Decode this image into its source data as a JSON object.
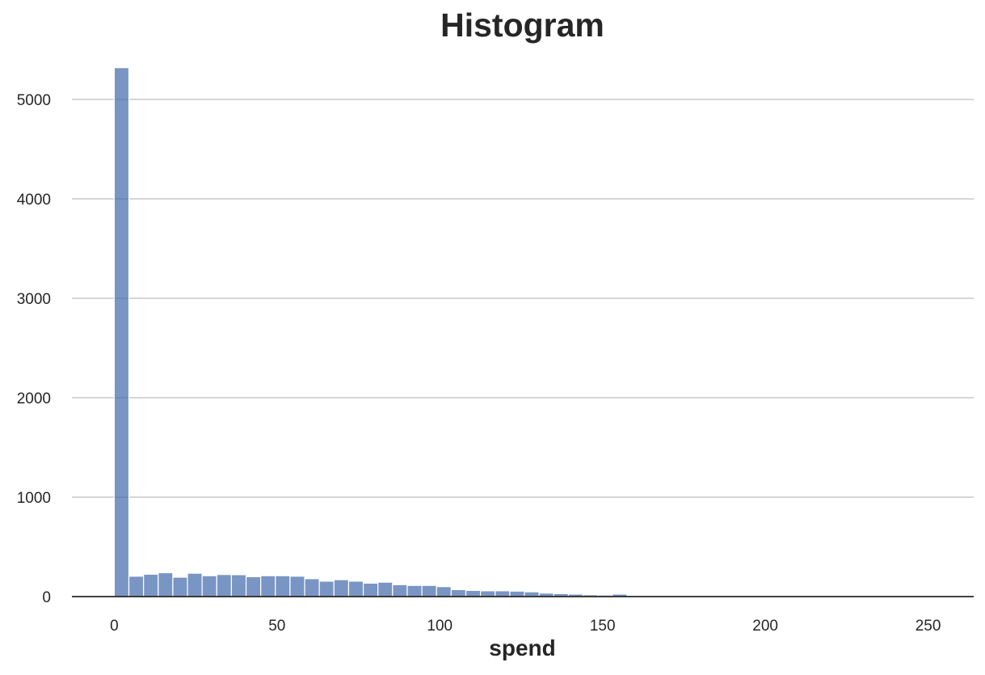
{
  "chart_data": {
    "type": "bar",
    "title": "Histogram",
    "xlabel": "spend",
    "ylabel": "",
    "xlim": [
      -13,
      264
    ],
    "ylim": [
      0,
      5350
    ],
    "x_ticks": [
      0,
      50,
      100,
      150,
      200,
      250
    ],
    "y_ticks": [
      0,
      1000,
      2000,
      3000,
      4000,
      5000
    ],
    "grid": "horizontal",
    "bar_color": "#4c72b0",
    "bin_width": 4.5,
    "bin_start": 0,
    "values": [
      5320,
      205,
      225,
      240,
      195,
      235,
      210,
      222,
      220,
      200,
      210,
      210,
      205,
      180,
      155,
      170,
      155,
      135,
      145,
      120,
      112,
      112,
      100,
      70,
      62,
      58,
      58,
      55,
      48,
      35,
      30,
      25,
      18,
      15,
      25,
      8,
      6,
      5,
      4,
      4,
      3,
      3,
      2,
      2,
      2,
      1,
      1,
      1,
      1,
      1,
      1,
      1,
      1,
      1,
      1,
      1,
      1,
      1
    ]
  }
}
